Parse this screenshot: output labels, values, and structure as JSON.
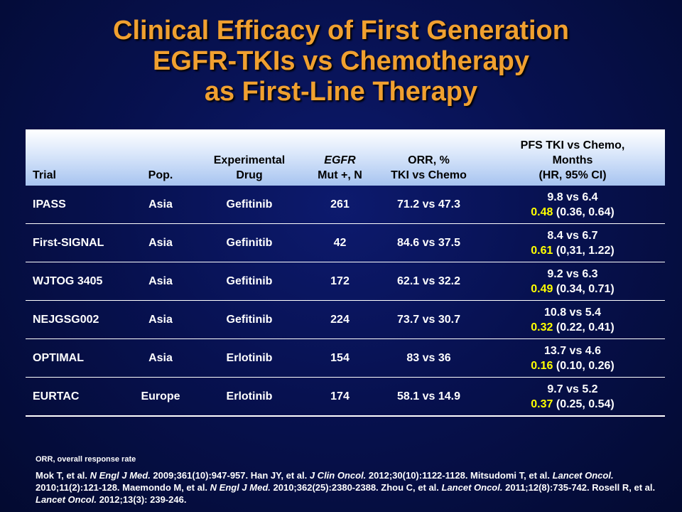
{
  "title": {
    "line1": "Clinical Efficacy of First Generation",
    "line2": "EGFR-TKIs vs Chemotherapy",
    "line3": "as First-Line Therapy",
    "color": "#f0a030"
  },
  "table": {
    "headers": {
      "trial": "Trial",
      "pop": "Pop.",
      "drug_line1": "Experimental",
      "drug_line2": "Drug",
      "egfr_line1": "EGFR",
      "egfr_line2": "Mut +, N",
      "orr_line1": "ORR, %",
      "orr_line2": "TKI vs Chemo",
      "pfs_line1": "PFS TKI vs Chemo,",
      "pfs_line2": "Months",
      "pfs_line3": "(HR, 95% CI)"
    },
    "rows": [
      {
        "trial": "IPASS",
        "pop": "Asia",
        "drug": "Gefitinib",
        "n": "261",
        "orr": "71.2 vs 47.3",
        "pfs": "9.8 vs 6.4",
        "hr": "0.48",
        "ci": " (0.36, 0.64)"
      },
      {
        "trial": "First-SIGNAL",
        "pop": "Asia",
        "drug": "Gefinitib",
        "n": "42",
        "orr": "84.6 vs 37.5",
        "pfs": "8.4 vs 6.7",
        "hr": "0.61",
        "ci": " (0,31, 1.22)"
      },
      {
        "trial": "WJTOG 3405",
        "pop": "Asia",
        "drug": "Gefitinib",
        "n": "172",
        "orr": "62.1 vs 32.2",
        "pfs": "9.2 vs 6.3",
        "hr": "0.49",
        "ci": " (0.34, 0.71)"
      },
      {
        "trial": "NEJGSG002",
        "pop": "Asia",
        "drug": "Gefitinib",
        "n": "224",
        "orr": "73.7 vs 30.7",
        "pfs": "10.8 vs 5.4",
        "hr": "0.32",
        "ci": " (0.22, 0.41)"
      },
      {
        "trial": "OPTIMAL",
        "pop": "Asia",
        "drug": "Erlotinib",
        "n": "154",
        "orr": "83 vs 36",
        "pfs": "13.7 vs 4.6",
        "hr": "0.16",
        "ci": " (0.10, 0.26)"
      },
      {
        "trial": "EURTAC",
        "pop": "Europe",
        "drug": "Erlotinib",
        "n": "174",
        "orr": "58.1 vs 14.9",
        "pfs": "9.7 vs 5.2",
        "hr": "0.37",
        "ci": " (0.25, 0.54)"
      }
    ],
    "hr_color": "#ffff00"
  },
  "footnote": "ORR, overall response rate",
  "references": {
    "r1_authors": "Mok T, et al. ",
    "r1_journal": "N Engl J Med.",
    "r1_cite": " 2009;361(10):947-957. Han JY, et al. ",
    "r2_journal": "J Clin Oncol.",
    "r2_cite": " 2012;30(10):1122-1128. Mitsudomi T, et al. ",
    "r3_journal": "Lancet Oncol.",
    "r3_cite": " 2010;11(2):121-128. Maemondo M, et al. ",
    "r4_journal": "N Engl J Med.",
    "r4_cite": " 2010;362(25):2380-2388. Zhou C, et al. ",
    "r5_journal": "Lancet Oncol.",
    "r5_cite": " 2011;12(8):735-742. Rosell R, et al. ",
    "r6_journal": "Lancet Oncol.",
    "r6_cite": "  2012;13(3): 239-246."
  }
}
